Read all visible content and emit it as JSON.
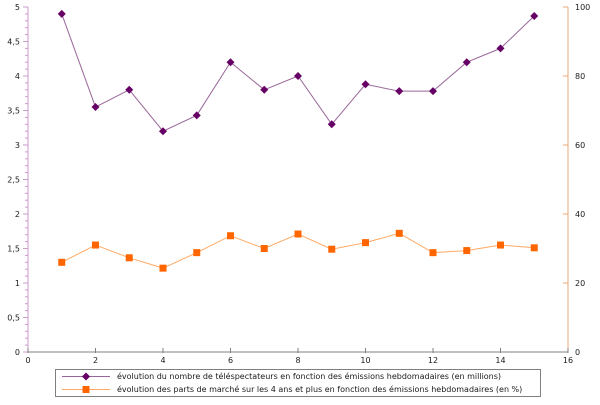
{
  "chart_data": {
    "type": "line",
    "title": "",
    "grid": false,
    "x": [
      1,
      2,
      3,
      4,
      5,
      6,
      7,
      8,
      9,
      10,
      11,
      12,
      13,
      14,
      15
    ],
    "series": [
      {
        "name": "évolution du nombre de téléspectateurs en fonction des émissions hebdomadaires (en millions)",
        "axis": "left",
        "marker": "diamond",
        "line_color": "#996699",
        "marker_color": "#660066",
        "values": [
          4.9,
          3.55,
          3.8,
          3.2,
          3.43,
          4.2,
          3.8,
          4.0,
          3.3,
          3.88,
          3.78,
          3.78,
          4.2,
          4.4,
          4.87
        ]
      },
      {
        "name": "évolution des parts de marché sur les 4 ans et plus en fonction des émissions hebdomadaires (en %)",
        "axis": "right",
        "marker": "square",
        "line_color": "#ffaa66",
        "marker_color": "#ff6600",
        "values": [
          26,
          31,
          27.3,
          24.3,
          28.8,
          33.7,
          30,
          34.2,
          29.8,
          31.7,
          34.4,
          28.8,
          29.4,
          31,
          30.2
        ]
      }
    ],
    "x_axis": {
      "min": 0,
      "max": 16,
      "major_step": 2,
      "color": "#808080",
      "tick_labels": [
        "0",
        "2",
        "4",
        "6",
        "8",
        "10",
        "12",
        "14",
        "16"
      ],
      "label_color": "#1a1a1a"
    },
    "left_axis": {
      "min": 0,
      "max": 5,
      "major_step": 0.5,
      "minor_step": 0.1,
      "color": "#cc99cc",
      "tick_labels": [
        "0",
        "0,5",
        "1",
        "1,5",
        "2",
        "2,5",
        "3",
        "3,5",
        "4",
        "4,5",
        "5"
      ],
      "label_color": "#1a1a1a"
    },
    "right_axis": {
      "min": 0,
      "max": 100,
      "major_step": 20,
      "color": "#eeaa77",
      "tick_labels": [
        "0",
        "20",
        "40",
        "60",
        "80",
        "100"
      ],
      "label_color": "#1a1a1a"
    },
    "legend": {
      "position": "bottom",
      "border_color": "#7f7f7f"
    }
  }
}
